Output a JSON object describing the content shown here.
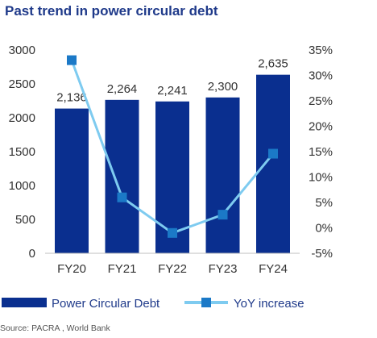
{
  "chart_data": {
    "type": "bar",
    "title": "Past trend in power circular debt",
    "categories": [
      "FY20",
      "FY21",
      "FY22",
      "FY23",
      "FY24"
    ],
    "series": [
      {
        "name": "Power Circular Debt",
        "type": "bar",
        "axis": "left",
        "color": "#0a2f8f",
        "values": [
          2136,
          2264,
          2241,
          2300,
          2635
        ],
        "data_labels": [
          "2,136",
          "2,264",
          "2,241",
          "2,300",
          "2,635"
        ]
      },
      {
        "name": "YoY increase",
        "type": "line",
        "axis": "right",
        "color": "#7ecbf0",
        "marker_color": "#1b79c7",
        "values": [
          33,
          6,
          -1,
          2.6,
          14.6
        ]
      }
    ],
    "y_left": {
      "ylim": [
        0,
        3000
      ],
      "ticks": [
        0,
        500,
        1000,
        1500,
        2000,
        2500,
        3000
      ],
      "tick_labels": [
        "0",
        "500",
        "1000",
        "1500",
        "2000",
        "2500",
        "3000"
      ]
    },
    "y_right": {
      "ylim": [
        -5,
        35
      ],
      "ticks": [
        -5,
        0,
        5,
        10,
        15,
        20,
        25,
        30,
        35
      ],
      "tick_labels": [
        "-5%",
        "0%",
        "5%",
        "10%",
        "15%",
        "20%",
        "25%",
        "30%",
        "35%"
      ]
    },
    "grid": false,
    "legend_position": "bottom",
    "source": "Source: PACRA , World Bank"
  }
}
